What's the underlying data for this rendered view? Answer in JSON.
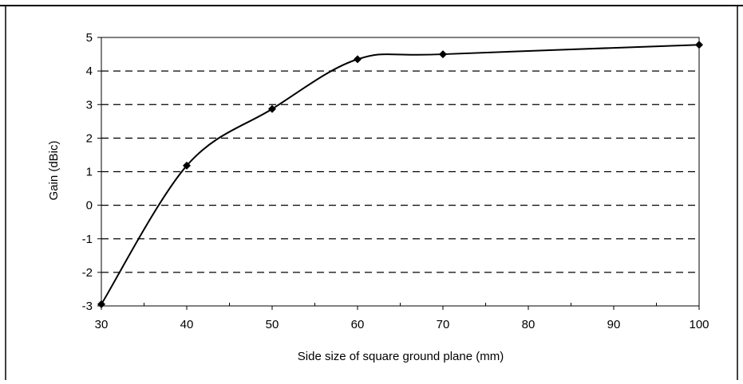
{
  "chart_data": {
    "type": "line",
    "title": "",
    "xlabel": "Side size of square ground plane (mm)",
    "ylabel": "Gain (dBic)",
    "categories": [
      "30",
      "40",
      "50",
      "60",
      "70",
      "80",
      "90",
      "100"
    ],
    "x": [
      "30",
      "40",
      "50",
      "60",
      "70",
      "100"
    ],
    "ylim": [
      -3,
      5
    ],
    "yticks": [
      "5",
      "4",
      "3",
      "2",
      "1",
      "0",
      "-1",
      "-2",
      "-3"
    ],
    "grid": "horizontal dashed",
    "legend": "none",
    "series": [
      {
        "values": [
          -2.95,
          1.18,
          2.87,
          4.35,
          4.5,
          4.78
        ]
      }
    ],
    "colors": {
      "line": "#000000",
      "grid": "#000000",
      "marker": "#000000"
    }
  }
}
